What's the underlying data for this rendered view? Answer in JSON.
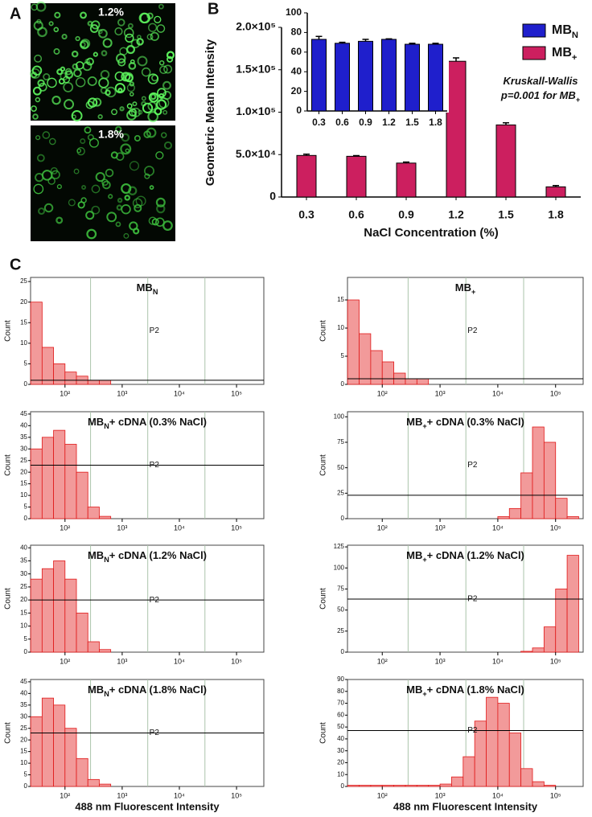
{
  "panel_labels": [
    "A",
    "B",
    "C"
  ],
  "images": [
    {
      "label": "1.2%"
    },
    {
      "label": "1.8%"
    }
  ],
  "chart_data": [
    {
      "type": "bar",
      "role": "main",
      "xlabel": "NaCl Concentration (%)",
      "ylabel": "Geometric Mean Intensity",
      "categories": [
        "0.3",
        "0.6",
        "0.9",
        "1.2",
        "1.5",
        "1.8"
      ],
      "series": [
        {
          "name": "MB",
          "subscript": "+",
          "color": "#cc1f5f",
          "values": [
            49000,
            48000,
            40000,
            160000,
            85000,
            12000
          ],
          "errors": [
            1500,
            800,
            1200,
            4000,
            2500,
            1500
          ]
        }
      ],
      "ylim": [
        0,
        200000
      ],
      "yticks": [
        0,
        {
          "value": 50000,
          "label": "5.0×10⁴"
        },
        {
          "value": 100000,
          "label": "1.0×10⁵"
        },
        {
          "value": 150000,
          "label": "1.5×10⁵"
        },
        {
          "value": 200000,
          "label": "2.0×10⁵"
        }
      ],
      "annotation": {
        "line1": "Kruskall-Wallis",
        "line2": "p=0.001 for MB",
        "line2_sub": "+"
      }
    },
    {
      "type": "bar",
      "role": "inset",
      "categories": [
        "0.3",
        "0.6",
        "0.9",
        "1.2",
        "1.5",
        "1.8"
      ],
      "series": [
        {
          "name": "MB",
          "subscript": "N",
          "color": "#1f1fcc",
          "values": [
            73,
            69,
            71,
            73,
            68,
            68
          ],
          "errors": [
            3,
            1,
            2,
            0.5,
            1,
            1
          ]
        }
      ],
      "ylim": [
        0,
        100
      ],
      "yticks": [
        0,
        20,
        40,
        60,
        80,
        100
      ]
    },
    {
      "type": "histogram",
      "title": "MB",
      "title_sub": "N",
      "ylabel": "Count",
      "color": "#f29a9a",
      "edge_color": "#e01818",
      "log_x": true,
      "bins": [
        25.1,
        39.8,
        63.1,
        100,
        158.5,
        251.2,
        398.1,
        631,
        1000,
        1585,
        2512,
        3981,
        6310,
        10000,
        15849,
        25119,
        39811,
        63096,
        100000,
        158489,
        251189
      ],
      "values": [
        20,
        9,
        5,
        3,
        2,
        1,
        1,
        0,
        0,
        0,
        0,
        0,
        0,
        0,
        0,
        0,
        0,
        0,
        0,
        0
      ],
      "xlim": [
        25,
        300000
      ],
      "xticks": [
        {
          "value": 100,
          "label": "10²"
        },
        {
          "value": 1000,
          "label": "10³"
        },
        {
          "value": 10000,
          "label": "10⁴"
        },
        {
          "value": 100000,
          "label": "10⁵"
        }
      ],
      "ylim": [
        0,
        26
      ],
      "yticks": [
        0,
        5,
        10,
        15,
        20,
        25
      ],
      "gate_x": [
        280,
        2800,
        28000
      ],
      "gate_y": 1,
      "gate_label": "P2"
    },
    {
      "type": "histogram",
      "title": "MB",
      "title_sub": "+",
      "ylabel": "Count",
      "color": "#f29a9a",
      "edge_color": "#e01818",
      "log_x": true,
      "bins": [
        25.1,
        39.8,
        63.1,
        100,
        158.5,
        251.2,
        398.1,
        631,
        1000,
        1585,
        2512,
        3981,
        6310,
        10000,
        15849,
        25119,
        39811,
        63096,
        100000,
        158489,
        251189
      ],
      "values": [
        15,
        9,
        6,
        4,
        2,
        1,
        1,
        0,
        0,
        0,
        0,
        0,
        0,
        0,
        0,
        0,
        0,
        0,
        0,
        0
      ],
      "xlim": [
        25,
        300000
      ],
      "xticks": [
        {
          "value": 100,
          "label": "10²"
        },
        {
          "value": 1000,
          "label": "10³"
        },
        {
          "value": 10000,
          "label": "10⁴"
        },
        {
          "value": 100000,
          "label": "10⁵"
        }
      ],
      "ylim": [
        0,
        19
      ],
      "yticks": [
        0,
        5,
        10,
        15
      ],
      "gate_x": [
        280,
        2800,
        28000
      ],
      "gate_y": 1,
      "gate_label": "P2"
    },
    {
      "type": "histogram",
      "title": "MB",
      "title_sub": "N",
      "title_rest": "+ cDNA  (0.3% NaCl)",
      "ylabel": "Count",
      "color": "#f29a9a",
      "edge_color": "#e01818",
      "log_x": true,
      "bins": [
        25.1,
        39.8,
        63.1,
        100,
        158.5,
        251.2,
        398.1,
        631,
        1000,
        1585,
        2512,
        3981,
        6310,
        10000,
        15849,
        25119,
        39811,
        63096,
        100000,
        158489,
        251189
      ],
      "values": [
        30,
        35,
        38,
        32,
        20,
        5,
        1,
        0,
        0,
        0,
        0,
        0,
        0,
        0,
        0,
        0,
        0,
        0,
        0,
        0
      ],
      "xlim": [
        25,
        300000
      ],
      "xticks": [
        {
          "value": 100,
          "label": "10²"
        },
        {
          "value": 1000,
          "label": "10³"
        },
        {
          "value": 10000,
          "label": "10⁴"
        },
        {
          "value": 100000,
          "label": "10⁵"
        }
      ],
      "ylim": [
        0,
        46
      ],
      "yticks": [
        0,
        5,
        10,
        15,
        20,
        25,
        30,
        35,
        40,
        45
      ],
      "gate_x": [
        280,
        2800,
        28000
      ],
      "gate_y": 23,
      "gate_label": "P2"
    },
    {
      "type": "histogram",
      "title": "MB",
      "title_sub": "+",
      "title_rest": "+ cDNA  (0.3% NaCl)",
      "ylabel": "Count",
      "color": "#f29a9a",
      "edge_color": "#e01818",
      "log_x": true,
      "bins": [
        25.1,
        39.8,
        63.1,
        100,
        158.5,
        251.2,
        398.1,
        631,
        1000,
        1585,
        2512,
        3981,
        6310,
        10000,
        15849,
        25119,
        39811,
        63096,
        100000,
        158489,
        251189
      ],
      "values": [
        0,
        0,
        0,
        0,
        0,
        0,
        0,
        0,
        0,
        0,
        0,
        0,
        0,
        2,
        10,
        45,
        90,
        75,
        20,
        2
      ],
      "xlim": [
        25,
        300000
      ],
      "xticks": [
        {
          "value": 100,
          "label": "10²"
        },
        {
          "value": 1000,
          "label": "10³"
        },
        {
          "value": 10000,
          "label": "10⁴"
        },
        {
          "value": 100000,
          "label": "10⁵"
        }
      ],
      "ylim": [
        0,
        105
      ],
      "yticks": [
        0,
        25,
        50,
        75,
        100
      ],
      "gate_x": [
        280,
        2800,
        28000
      ],
      "gate_y": 23,
      "gate_label": "P2"
    },
    {
      "type": "histogram",
      "title": "MB",
      "title_sub": "N",
      "title_rest": "+ cDNA  (1.2% NaCl)",
      "ylabel": "Count",
      "color": "#f29a9a",
      "edge_color": "#e01818",
      "log_x": true,
      "bins": [
        25.1,
        39.8,
        63.1,
        100,
        158.5,
        251.2,
        398.1,
        631,
        1000,
        1585,
        2512,
        3981,
        6310,
        10000,
        15849,
        25119,
        39811,
        63096,
        100000,
        158489,
        251189
      ],
      "values": [
        28,
        32,
        35,
        28,
        15,
        4,
        1,
        0,
        0,
        0,
        0,
        0,
        0,
        0,
        0,
        0,
        0,
        0,
        0,
        0
      ],
      "xlim": [
        25,
        300000
      ],
      "xticks": [
        {
          "value": 100,
          "label": "10²"
        },
        {
          "value": 1000,
          "label": "10³"
        },
        {
          "value": 10000,
          "label": "10⁴"
        },
        {
          "value": 100000,
          "label": "10⁵"
        }
      ],
      "ylim": [
        0,
        41
      ],
      "yticks": [
        0,
        5,
        10,
        15,
        20,
        25,
        30,
        35,
        40
      ],
      "gate_x": [
        280,
        2800,
        28000
      ],
      "gate_y": 20,
      "gate_label": "P2"
    },
    {
      "type": "histogram",
      "title": "MB",
      "title_sub": "+",
      "title_rest": "+ cDNA  (1.2% NaCl)",
      "ylabel": "Count",
      "color": "#f29a9a",
      "edge_color": "#e01818",
      "log_x": true,
      "bins": [
        25.1,
        39.8,
        63.1,
        100,
        158.5,
        251.2,
        398.1,
        631,
        1000,
        1585,
        2512,
        3981,
        6310,
        10000,
        15849,
        25119,
        39811,
        63096,
        100000,
        158489,
        251189
      ],
      "values": [
        0,
        0,
        0,
        0,
        0,
        0,
        0,
        0,
        0,
        0,
        0,
        0,
        0,
        0,
        0,
        1,
        5,
        30,
        75,
        115
      ],
      "xlim": [
        25,
        300000
      ],
      "xticks": [
        {
          "value": 100,
          "label": "10²"
        },
        {
          "value": 1000,
          "label": "10³"
        },
        {
          "value": 10000,
          "label": "10⁴"
        },
        {
          "value": 100000,
          "label": "10⁵"
        }
      ],
      "ylim": [
        0,
        127
      ],
      "yticks": [
        0,
        25,
        50,
        75,
        100,
        125
      ],
      "gate_x": [
        280,
        2800,
        28000
      ],
      "gate_y": 63,
      "gate_label": "P2"
    },
    {
      "type": "histogram",
      "title": "MB",
      "title_sub": "N",
      "title_rest": "+ cDNA  (1.8% NaCl)",
      "ylabel": "Count",
      "xlabel": "488 nm Fluorescent  Intensity",
      "color": "#f29a9a",
      "edge_color": "#e01818",
      "log_x": true,
      "bins": [
        25.1,
        39.8,
        63.1,
        100,
        158.5,
        251.2,
        398.1,
        631,
        1000,
        1585,
        2512,
        3981,
        6310,
        10000,
        15849,
        25119,
        39811,
        63096,
        100000,
        158489,
        251189
      ],
      "values": [
        30,
        38,
        35,
        25,
        12,
        3,
        1,
        0,
        0,
        0,
        0,
        0,
        0,
        0,
        0,
        0,
        0,
        0,
        0,
        0
      ],
      "xlim": [
        25,
        300000
      ],
      "xticks": [
        {
          "value": 100,
          "label": "10²"
        },
        {
          "value": 1000,
          "label": "10³"
        },
        {
          "value": 10000,
          "label": "10⁴"
        },
        {
          "value": 100000,
          "label": "10⁵"
        }
      ],
      "ylim": [
        0,
        46
      ],
      "yticks": [
        0,
        5,
        10,
        15,
        20,
        25,
        30,
        35,
        40,
        45
      ],
      "gate_x": [
        280,
        2800,
        28000
      ],
      "gate_y": 23,
      "gate_label": "P2"
    },
    {
      "type": "histogram",
      "title": "MB",
      "title_sub": "+",
      "title_rest": "+ cDNA  (1.8% NaCl)",
      "ylabel": "Count",
      "xlabel": "488 nm Fluorescent  Intensity",
      "color": "#f29a9a",
      "edge_color": "#e01818",
      "log_x": true,
      "bins": [
        25.1,
        39.8,
        63.1,
        100,
        158.5,
        251.2,
        398.1,
        631,
        1000,
        1585,
        2512,
        3981,
        6310,
        10000,
        15849,
        25119,
        39811,
        63096,
        100000,
        158489,
        251189
      ],
      "values": [
        1,
        1,
        1,
        1,
        1,
        1,
        1,
        1,
        2,
        8,
        25,
        55,
        75,
        70,
        45,
        15,
        4,
        1,
        0,
        0
      ],
      "xlim": [
        25,
        300000
      ],
      "xticks": [
        {
          "value": 100,
          "label": "10²"
        },
        {
          "value": 1000,
          "label": "10³"
        },
        {
          "value": 10000,
          "label": "10⁴"
        },
        {
          "value": 100000,
          "label": "10⁵"
        }
      ],
      "ylim": [
        0,
        90
      ],
      "yticks": [
        0,
        10,
        20,
        30,
        40,
        50,
        60,
        70,
        80,
        90
      ],
      "gate_x": [
        280,
        2800,
        28000
      ],
      "gate_y": 47,
      "gate_label": "P2"
    }
  ]
}
